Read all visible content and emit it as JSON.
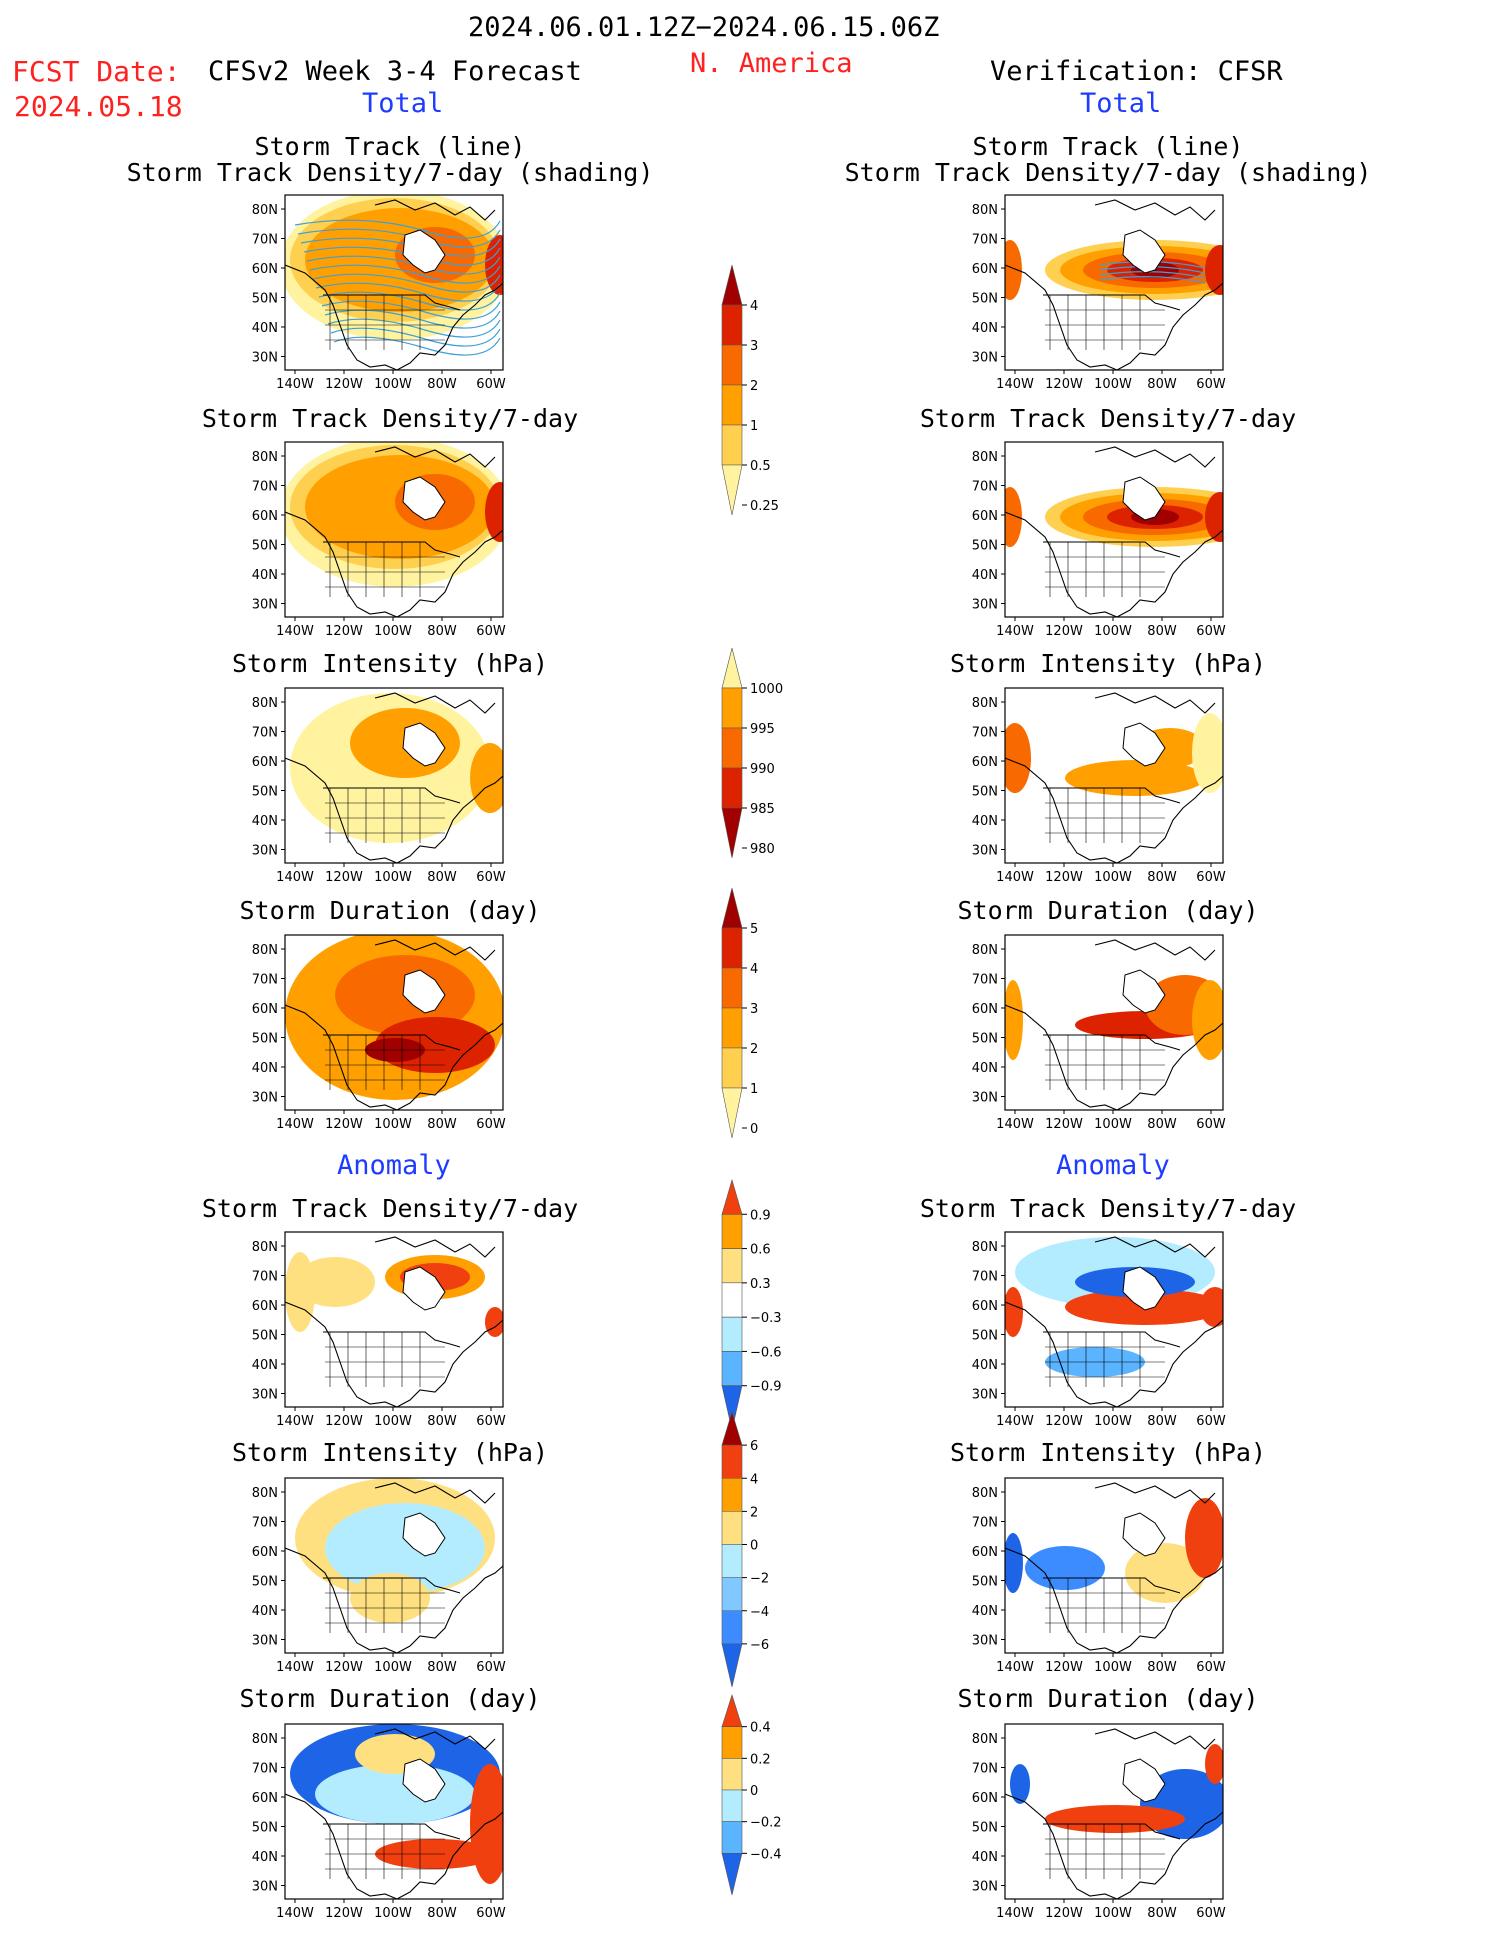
{
  "header": {
    "period": "2024.06.01.12Z−2024.06.15.06Z",
    "fcst_label": "FCST Date:",
    "fcst_date": "2024.05.18",
    "forecast_title": "CFSv2 Week 3-4 Forecast",
    "region": "N. America",
    "verification_title": "Verification: CFSR"
  },
  "sections": {
    "total": "Total",
    "anomaly": "Anomaly"
  },
  "map_axes": {
    "lat_labels": [
      "80N",
      "70N",
      "60N",
      "50N",
      "40N",
      "30N"
    ],
    "lon_labels": [
      "140W",
      "120W",
      "100W",
      "80W",
      "60W"
    ]
  },
  "panels": [
    {
      "title": "Storm Track (line)",
      "subtitle": "Storm Track Density/7-day (shading)"
    },
    {
      "title": "Storm Track Density/7-day"
    },
    {
      "title": "Storm Intensity (hPa)"
    },
    {
      "title": "Storm Duration (day)"
    },
    {
      "title": "Storm Track Density/7-day"
    },
    {
      "title": "Storm Intensity (hPa)"
    },
    {
      "title": "Storm Duration (day)"
    }
  ],
  "colorbars": [
    {
      "labels": [
        "4",
        "3",
        "2",
        "1",
        "0.5",
        "0.25"
      ],
      "colors": [
        "#a00000",
        "#dd2200",
        "#f86a00",
        "#ffa000",
        "#ffd050",
        "#fff3a0"
      ]
    },
    {
      "labels": [
        "1000",
        "995",
        "990",
        "985",
        "980"
      ],
      "colors": [
        "#fff3a0",
        "#ffa000",
        "#f86a00",
        "#dd2200",
        "#a00000"
      ]
    },
    {
      "labels": [
        "5",
        "4",
        "3",
        "2",
        "1",
        "0"
      ],
      "colors": [
        "#a00000",
        "#dd2200",
        "#f86a00",
        "#ffa000",
        "#ffd050",
        "#fff3a0"
      ]
    },
    {
      "labels": [
        "0.9",
        "0.6",
        "0.3",
        "−0.3",
        "−0.6",
        "−0.9"
      ],
      "colors": [
        "#f04010",
        "#ffa000",
        "#ffe080",
        "#ffffff",
        "#b4ecff",
        "#5ab4ff",
        "#1e64e6"
      ]
    },
    {
      "labels": [
        "6",
        "4",
        "2",
        "0",
        "−2",
        "−4",
        "−6"
      ],
      "colors": [
        "#a00000",
        "#f04010",
        "#ffa000",
        "#ffe080",
        "#b4ecff",
        "#80c8ff",
        "#3c8cff",
        "#1e64e6"
      ]
    },
    {
      "labels": [
        "0.4",
        "0.2",
        "0",
        "−0.2",
        "−0.4"
      ],
      "colors": [
        "#f04010",
        "#ffa000",
        "#ffe080",
        "#b4ecff",
        "#5ab4ff",
        "#1e64e6"
      ]
    }
  ],
  "colors": {
    "red_text": "#ff2020",
    "blue_text": "#1e3cff",
    "track_line": "#3ca0d8"
  }
}
